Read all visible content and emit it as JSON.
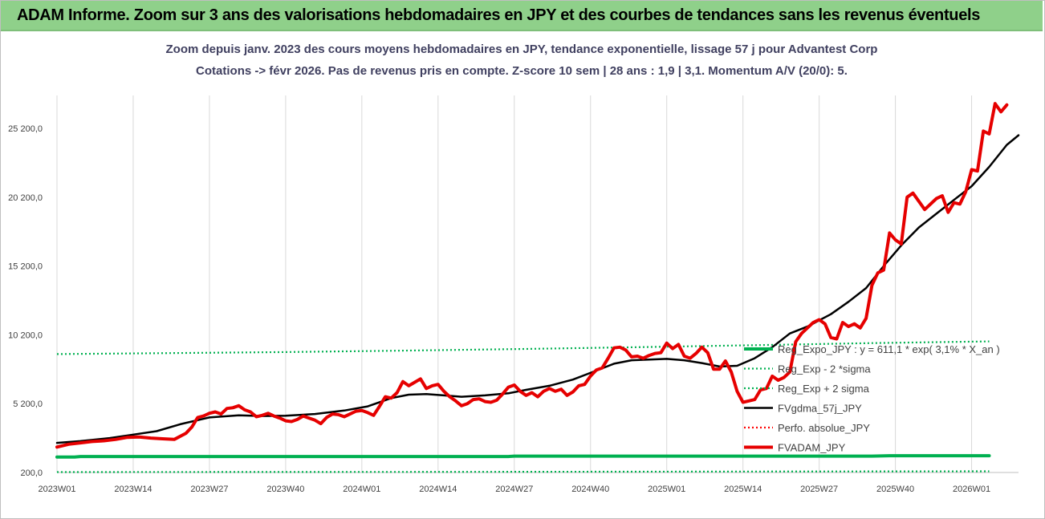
{
  "banner": {
    "title": "ADAM Informe. Zoom sur 3 ans des valorisations hebdomadaires en JPY et des courbes de tendances sans les revenus éventuels"
  },
  "chart_data": {
    "type": "line",
    "title": "Zoom depuis janv. 2023 des cours moyens hebdomadaires en JPY, tendance exponentielle, lissage 57 j pour Advantest Corp",
    "subtitle": "Cotations -> févr 2026.  Pas de revenus pris en compte. Z-score 10 sem | 28 ans : 1,9 | 3,1. Momentum A/V (20/0): 5.",
    "xlabel": "",
    "ylabel": "",
    "ylim": [
      200,
      27500
    ],
    "yticks": [
      200,
      5200,
      10200,
      15200,
      20200,
      25200
    ],
    "ytick_labels": [
      "200,0",
      "5 200,0",
      "10 200,0",
      "15 200,0",
      "20 200,0",
      "25 200,0"
    ],
    "xticks": [
      "2023W01",
      "2023W14",
      "2023W27",
      "2023W40",
      "2024W01",
      "2024W14",
      "2024W27",
      "2024W40",
      "2025W01",
      "2025W14",
      "2025W27",
      "2025W40",
      "2026W01"
    ],
    "grid": "vertical",
    "legend_position": "right-inside",
    "series": [
      {
        "name": "Reg_Expo_JPY : y = 611,1 * exp( 3,1% *   X_an )",
        "color": "#00b050",
        "style": "solid-thick",
        "points": [
          [
            1,
            1320
          ],
          [
            4,
            1320
          ],
          [
            5,
            1360
          ],
          [
            78,
            1360
          ],
          [
            79,
            1390
          ],
          [
            140,
            1390
          ],
          [
            143,
            1420
          ],
          [
            160,
            1420
          ]
        ]
      },
      {
        "name": "Reg_Exp - 2 *sigma",
        "color": "#00b050",
        "style": "dotted",
        "points": [
          [
            1,
            230
          ],
          [
            60,
            240
          ],
          [
            120,
            270
          ],
          [
            160,
            290
          ]
        ]
      },
      {
        "name": "Reg_Exp + 2 sigma",
        "color": "#00b050",
        "style": "dotted",
        "points": [
          [
            1,
            8800
          ],
          [
            20,
            8870
          ],
          [
            40,
            8950
          ],
          [
            60,
            9050
          ],
          [
            80,
            9170
          ],
          [
            100,
            9300
          ],
          [
            120,
            9450
          ],
          [
            140,
            9600
          ],
          [
            160,
            9720
          ]
        ]
      },
      {
        "name": "FVgdma_57j_JPY",
        "color": "#000000",
        "style": "solid",
        "points": [
          [
            1,
            2350
          ],
          [
            5,
            2480
          ],
          [
            10,
            2700
          ],
          [
            14,
            2950
          ],
          [
            18,
            3200
          ],
          [
            22,
            3700
          ],
          [
            27,
            4200
          ],
          [
            32,
            4350
          ],
          [
            36,
            4300
          ],
          [
            40,
            4320
          ],
          [
            45,
            4450
          ],
          [
            50,
            4700
          ],
          [
            54,
            5000
          ],
          [
            58,
            5600
          ],
          [
            61,
            5850
          ],
          [
            64,
            5900
          ],
          [
            67,
            5800
          ],
          [
            70,
            5700
          ],
          [
            74,
            5800
          ],
          [
            78,
            5950
          ],
          [
            81,
            6200
          ],
          [
            85,
            6500
          ],
          [
            89,
            6950
          ],
          [
            93,
            7600
          ],
          [
            96,
            8100
          ],
          [
            99,
            8350
          ],
          [
            102,
            8400
          ],
          [
            105,
            8450
          ],
          [
            108,
            8350
          ],
          [
            111,
            8150
          ],
          [
            114,
            7900
          ],
          [
            117,
            7950
          ],
          [
            120,
            8500
          ],
          [
            123,
            9300
          ],
          [
            126,
            10300
          ],
          [
            129,
            10800
          ],
          [
            133,
            11700
          ],
          [
            136,
            12600
          ],
          [
            139,
            13600
          ],
          [
            142,
            15200
          ],
          [
            145,
            16700
          ],
          [
            148,
            18000
          ],
          [
            151,
            19000
          ],
          [
            154,
            20000
          ],
          [
            157,
            21000
          ],
          [
            160,
            22400
          ],
          [
            163,
            24000
          ],
          [
            165,
            24700
          ]
        ]
      },
      {
        "name": "Perfo. absolue_JPY",
        "color": "#ff0000",
        "style": "dotted",
        "points": []
      },
      {
        "name": "FVADAM_JPY",
        "color": "#e60000",
        "style": "solid-thick",
        "points": [
          [
            1,
            2050
          ],
          [
            3,
            2250
          ],
          [
            5,
            2350
          ],
          [
            7,
            2450
          ],
          [
            9,
            2500
          ],
          [
            11,
            2600
          ],
          [
            13,
            2750
          ],
          [
            15,
            2780
          ],
          [
            17,
            2700
          ],
          [
            19,
            2650
          ],
          [
            21,
            2600
          ],
          [
            23,
            3050
          ],
          [
            24,
            3500
          ],
          [
            25,
            4200
          ],
          [
            26,
            4300
          ],
          [
            27,
            4500
          ],
          [
            28,
            4600
          ],
          [
            29,
            4450
          ],
          [
            30,
            4850
          ],
          [
            31,
            4900
          ],
          [
            32,
            5050
          ],
          [
            33,
            4750
          ],
          [
            34,
            4600
          ],
          [
            35,
            4250
          ],
          [
            36,
            4350
          ],
          [
            37,
            4500
          ],
          [
            38,
            4300
          ],
          [
            39,
            4150
          ],
          [
            40,
            3950
          ],
          [
            41,
            3900
          ],
          [
            42,
            4050
          ],
          [
            43,
            4300
          ],
          [
            44,
            4150
          ],
          [
            45,
            4000
          ],
          [
            46,
            3750
          ],
          [
            47,
            4200
          ],
          [
            48,
            4450
          ],
          [
            49,
            4400
          ],
          [
            50,
            4250
          ],
          [
            51,
            4450
          ],
          [
            52,
            4650
          ],
          [
            53,
            4700
          ],
          [
            54,
            4550
          ],
          [
            55,
            4350
          ],
          [
            56,
            5000
          ],
          [
            57,
            5700
          ],
          [
            58,
            5600
          ],
          [
            59,
            6000
          ],
          [
            60,
            6800
          ],
          [
            61,
            6500
          ],
          [
            62,
            6750
          ],
          [
            63,
            7000
          ],
          [
            64,
            6300
          ],
          [
            65,
            6500
          ],
          [
            66,
            6600
          ],
          [
            67,
            6100
          ],
          [
            68,
            5700
          ],
          [
            69,
            5400
          ],
          [
            70,
            5050
          ],
          [
            71,
            5200
          ],
          [
            72,
            5500
          ],
          [
            73,
            5550
          ],
          [
            74,
            5350
          ],
          [
            75,
            5300
          ],
          [
            76,
            5450
          ],
          [
            77,
            5900
          ],
          [
            78,
            6400
          ],
          [
            79,
            6550
          ],
          [
            80,
            6100
          ],
          [
            81,
            5800
          ],
          [
            82,
            6000
          ],
          [
            83,
            5700
          ],
          [
            84,
            6100
          ],
          [
            85,
            6300
          ],
          [
            86,
            6100
          ],
          [
            87,
            6250
          ],
          [
            88,
            5800
          ],
          [
            89,
            6050
          ],
          [
            90,
            6500
          ],
          [
            91,
            6600
          ],
          [
            92,
            7200
          ],
          [
            93,
            7650
          ],
          [
            94,
            7800
          ],
          [
            95,
            8500
          ],
          [
            96,
            9250
          ],
          [
            97,
            9300
          ],
          [
            98,
            9100
          ],
          [
            99,
            8600
          ],
          [
            100,
            8650
          ],
          [
            101,
            8500
          ],
          [
            102,
            8700
          ],
          [
            103,
            8850
          ],
          [
            104,
            8900
          ],
          [
            105,
            9600
          ],
          [
            106,
            9200
          ],
          [
            107,
            9500
          ],
          [
            108,
            8650
          ],
          [
            109,
            8500
          ],
          [
            110,
            8850
          ],
          [
            111,
            9300
          ],
          [
            112,
            8900
          ],
          [
            113,
            7700
          ],
          [
            114,
            7700
          ],
          [
            115,
            8300
          ],
          [
            116,
            7500
          ],
          [
            117,
            6100
          ],
          [
            118,
            5300
          ],
          [
            119,
            5400
          ],
          [
            120,
            5500
          ],
          [
            121,
            6200
          ],
          [
            122,
            6300
          ],
          [
            123,
            7200
          ],
          [
            124,
            6900
          ],
          [
            125,
            7100
          ],
          [
            126,
            7500
          ],
          [
            127,
            9700
          ],
          [
            128,
            10300
          ],
          [
            129,
            10700
          ],
          [
            130,
            11100
          ],
          [
            131,
            11300
          ],
          [
            132,
            11000
          ],
          [
            133,
            10000
          ],
          [
            134,
            9900
          ],
          [
            135,
            11100
          ],
          [
            136,
            10800
          ],
          [
            137,
            11000
          ],
          [
            138,
            10700
          ],
          [
            139,
            11400
          ],
          [
            140,
            13800
          ],
          [
            141,
            14700
          ],
          [
            142,
            14900
          ],
          [
            143,
            17600
          ],
          [
            144,
            17100
          ],
          [
            145,
            16800
          ],
          [
            146,
            20200
          ],
          [
            147,
            20500
          ],
          [
            148,
            19900
          ],
          [
            149,
            19300
          ],
          [
            150,
            19700
          ],
          [
            151,
            20100
          ],
          [
            152,
            20300
          ],
          [
            153,
            19100
          ],
          [
            154,
            19800
          ],
          [
            155,
            19700
          ],
          [
            156,
            20600
          ],
          [
            157,
            22200
          ],
          [
            158,
            22100
          ],
          [
            159,
            25000
          ],
          [
            160,
            24800
          ],
          [
            161,
            27000
          ],
          [
            162,
            26400
          ],
          [
            163,
            26900
          ]
        ]
      }
    ]
  }
}
